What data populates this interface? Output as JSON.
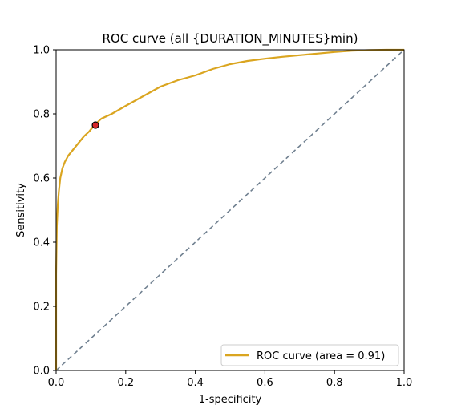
{
  "chart_data": {
    "type": "line",
    "title": "ROC curve (all {DURATION_MINUTES}min)",
    "xlabel": "1-specificity",
    "ylabel": "Sensitivity",
    "xlim": [
      0,
      1
    ],
    "ylim": [
      0,
      1
    ],
    "grid": false,
    "legend_position": "bottom-right",
    "xticks": [
      "0.0",
      "0.2",
      "0.4",
      "0.6",
      "0.8",
      "1.0"
    ],
    "yticks": [
      "0.0",
      "0.2",
      "0.4",
      "0.6",
      "0.8",
      "1.0"
    ],
    "series": [
      {
        "name": "ROC curve (area = 0.91)",
        "color": "#DAA520",
        "x": [
          0.0,
          0.0,
          0.002,
          0.005,
          0.008,
          0.012,
          0.018,
          0.025,
          0.035,
          0.05,
          0.065,
          0.08,
          0.095,
          0.11,
          0.13,
          0.16,
          0.2,
          0.25,
          0.3,
          0.35,
          0.4,
          0.45,
          0.5,
          0.55,
          0.6,
          0.65,
          0.7,
          0.75,
          0.8,
          0.85,
          0.9,
          0.95,
          1.0
        ],
        "y": [
          0.0,
          0.3,
          0.45,
          0.52,
          0.56,
          0.6,
          0.63,
          0.65,
          0.67,
          0.69,
          0.71,
          0.73,
          0.745,
          0.765,
          0.785,
          0.8,
          0.825,
          0.855,
          0.885,
          0.905,
          0.92,
          0.94,
          0.955,
          0.965,
          0.972,
          0.978,
          0.983,
          0.988,
          0.993,
          0.997,
          0.999,
          1.0,
          1.0
        ]
      },
      {
        "name": "",
        "style": "dashed",
        "color": "#708090",
        "x": [
          0,
          1
        ],
        "y": [
          0,
          1
        ]
      }
    ],
    "markers": [
      {
        "x": 0.113,
        "y": 0.765,
        "color": "#d62728"
      }
    ]
  }
}
